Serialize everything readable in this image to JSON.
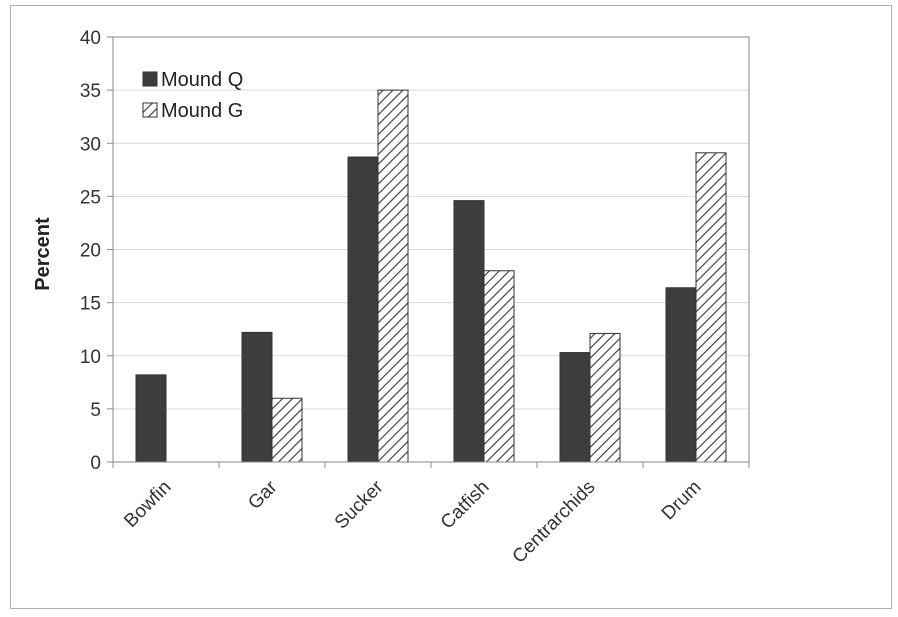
{
  "chart_data": {
    "type": "bar",
    "title": "",
    "xlabel": "",
    "ylabel": "Percent",
    "ylim": [
      0,
      40
    ],
    "yticks": [
      0,
      5,
      10,
      15,
      20,
      25,
      30,
      35,
      40
    ],
    "grid": true,
    "legend_position": "top-left",
    "categories": [
      "Bowfin",
      "Gar",
      "Sucker",
      "Catfish",
      "Centrarchids",
      "Drum"
    ],
    "series": [
      {
        "name": "Mound Q",
        "values": [
          8.2,
          12.2,
          28.7,
          24.6,
          10.3,
          16.4
        ],
        "fill": "#3d3d3d",
        "pattern": "solid"
      },
      {
        "name": "Mound G",
        "values": [
          0,
          6.0,
          35.0,
          18.0,
          12.1,
          29.1
        ],
        "fill": "#ffffff",
        "pattern": "diagonal-hatch"
      }
    ]
  },
  "colors": {
    "dark_bar": "#3d3d3d",
    "hatch": "#444444",
    "grid": "#d9d9d9",
    "axis": "#888888"
  }
}
